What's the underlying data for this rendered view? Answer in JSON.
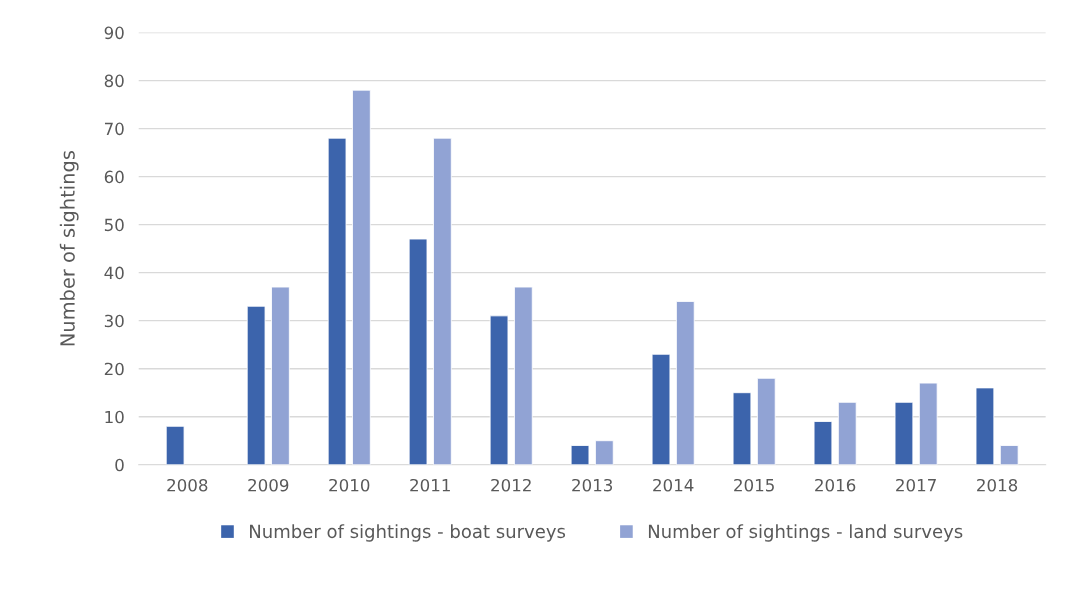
{
  "chart_data": {
    "type": "bar",
    "ylabel": "Number of sightings",
    "categories": [
      "2008",
      "2009",
      "2010",
      "2011",
      "2012",
      "2013",
      "2014",
      "2015",
      "2016",
      "2017",
      "2018"
    ],
    "series": [
      {
        "name": "Number of sightings - boat surveys",
        "color": "#3c64ac",
        "values": [
          8,
          33,
          68,
          47,
          31,
          4,
          23,
          15,
          9,
          13,
          16
        ]
      },
      {
        "name": "Number of sightings - land surveys",
        "color": "#91a3d4",
        "values": [
          null,
          37,
          78,
          68,
          37,
          5,
          34,
          18,
          13,
          17,
          4
        ]
      }
    ],
    "ylim": [
      0,
      90
    ],
    "yticks": [
      0,
      10,
      20,
      30,
      40,
      50,
      60,
      70,
      80,
      90
    ],
    "grid": "y",
    "legend": "bottom"
  }
}
